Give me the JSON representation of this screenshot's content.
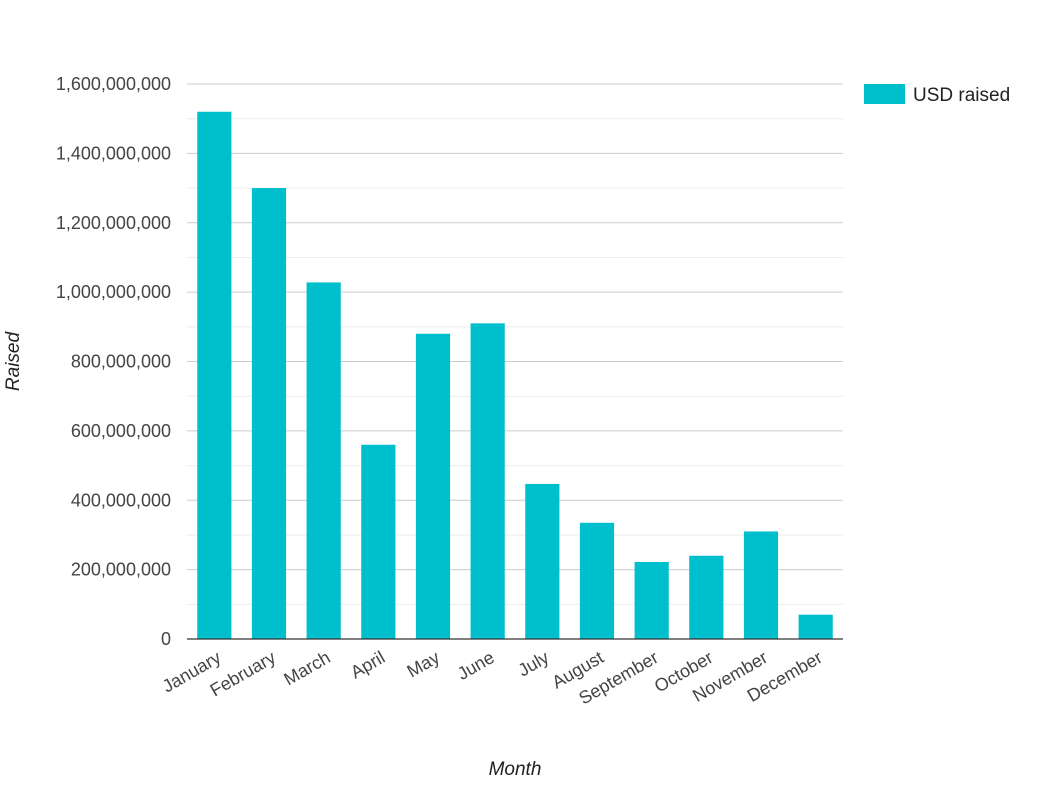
{
  "chart_data": {
    "type": "bar",
    "xlabel": "Month",
    "ylabel": "Raised",
    "categories": [
      "January",
      "February",
      "March",
      "April",
      "May",
      "June",
      "July",
      "August",
      "September",
      "October",
      "November",
      "December"
    ],
    "series": [
      {
        "name": "USD raised",
        "color": "#00bfcc",
        "values": [
          1520000000,
          1300000000,
          1028000000,
          560000000,
          880000000,
          910000000,
          447000000,
          335000000,
          222000000,
          240000000,
          310000000,
          70000000
        ]
      }
    ],
    "ylim": [
      0,
      1600000000
    ],
    "yticks": [
      {
        "value": 0,
        "label": "0"
      },
      {
        "value": 200000000,
        "label": "200,000,000"
      },
      {
        "value": 400000000,
        "label": "400,000,000"
      },
      {
        "value": 600000000,
        "label": "600,000,000"
      },
      {
        "value": 800000000,
        "label": "800,000,000"
      },
      {
        "value": 1000000000,
        "label": "1,000,000,000"
      },
      {
        "value": 1200000000,
        "label": "1,200,000,000"
      },
      {
        "value": 1400000000,
        "label": "1,400,000,000"
      },
      {
        "value": 1600000000,
        "label": "1,600,000,000"
      }
    ],
    "grid": true,
    "minor_grid": true,
    "legend_position": "top-right"
  }
}
